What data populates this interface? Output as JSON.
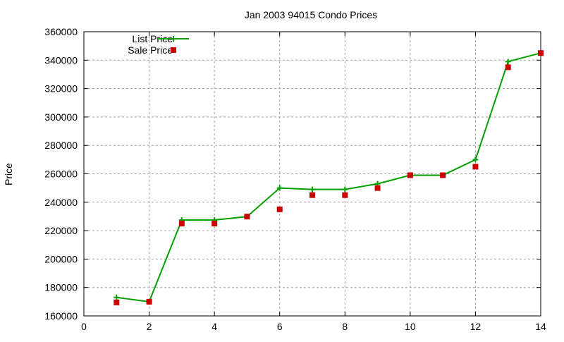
{
  "chart_data": {
    "type": "line",
    "title": "Jan 2003 94015 Condo Prices",
    "xlabel": "",
    "ylabel": "Price",
    "xlim": [
      0,
      14
    ],
    "ylim": [
      160000,
      360000
    ],
    "xticks": [
      0,
      2,
      4,
      6,
      8,
      10,
      12,
      14
    ],
    "yticks": [
      160000,
      180000,
      200000,
      220000,
      240000,
      260000,
      280000,
      300000,
      320000,
      340000,
      360000
    ],
    "grid": true,
    "legend_position": "top-left",
    "x": [
      1,
      2,
      3,
      4,
      5,
      6,
      7,
      8,
      9,
      10,
      11,
      12,
      13,
      14
    ],
    "series": [
      {
        "name": "List Price",
        "style": "linespoints",
        "marker": "plus",
        "color": "#00a000",
        "values": [
          173000,
          170000,
          227500,
          227500,
          229900,
          250000,
          249000,
          249000,
          253000,
          259000,
          259000,
          270000,
          339000,
          345000
        ]
      },
      {
        "name": "Sale Price",
        "style": "points",
        "marker": "square",
        "color": "#cc0000",
        "values": [
          169500,
          170000,
          225000,
          225000,
          229900,
          235000,
          245000,
          245000,
          250000,
          259000,
          259000,
          265000,
          335000,
          345000
        ]
      }
    ]
  }
}
